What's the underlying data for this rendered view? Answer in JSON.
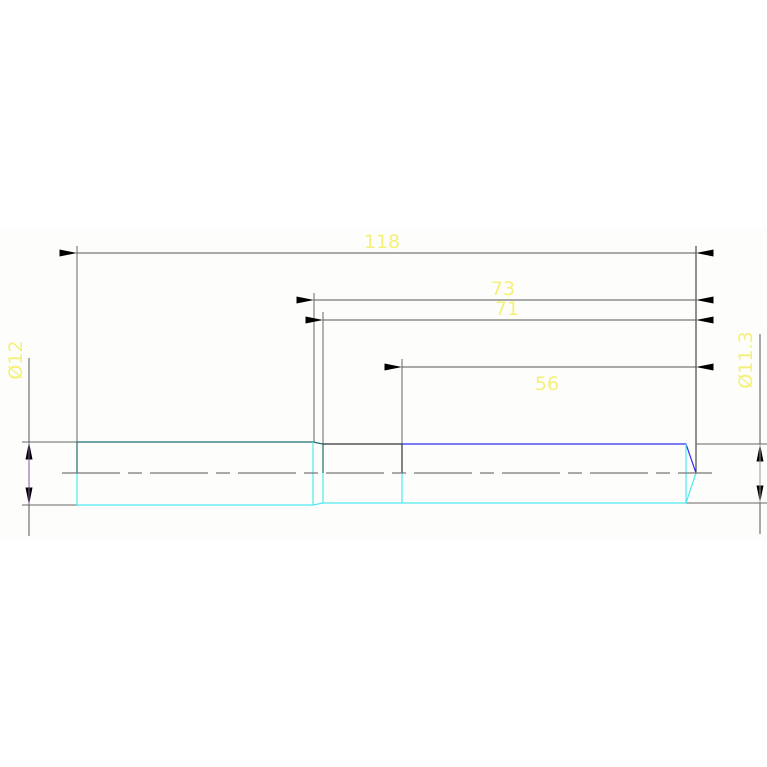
{
  "drawing": {
    "colors": {
      "background": "#fdfefb",
      "dimension_text": "#f4f07a",
      "dimension_line": "#555555",
      "outline_teal": "#1f6f6f",
      "outline_blue": "#3030f0",
      "hidden_cyan": "#4fe8f0",
      "centerline": "#777777"
    },
    "dimensions": {
      "overall_length": "118",
      "length_73": "73",
      "length_71": "71",
      "length_56": "56",
      "diameter_left": "Ø12",
      "diameter_right": "Ø11.3"
    }
  }
}
